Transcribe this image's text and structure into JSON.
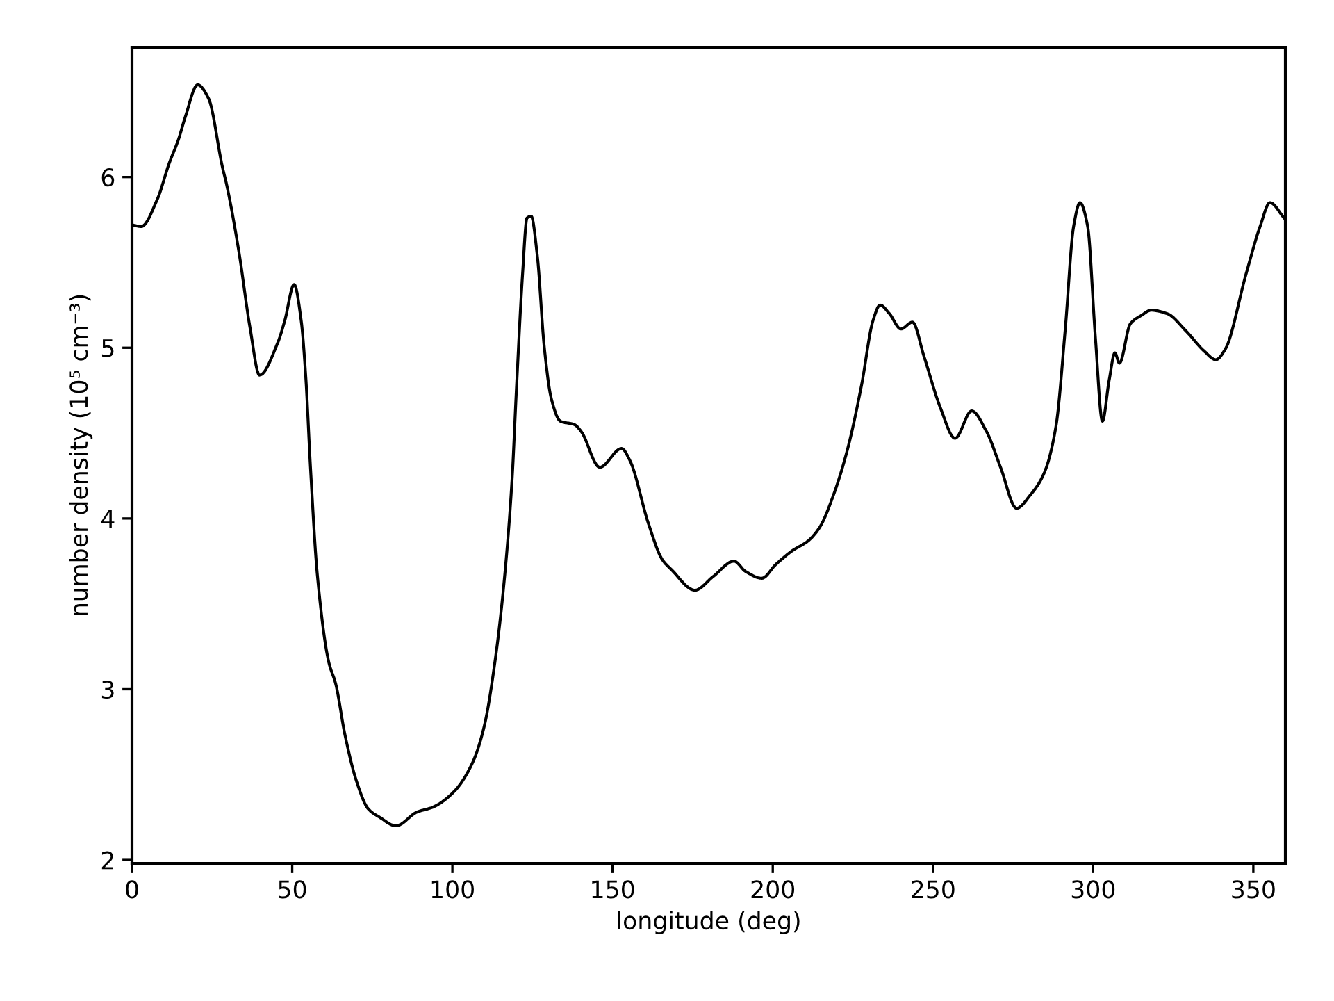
{
  "chart_data": {
    "type": "line",
    "xlabel": "longitude (deg)",
    "ylabel": "number density (10⁵ cm⁻³)",
    "xlim": [
      0,
      360
    ],
    "xticks": [
      0,
      50,
      100,
      150,
      200,
      250,
      300,
      350
    ],
    "ylim": [
      1.98,
      6.76
    ],
    "yticks": [
      2,
      3,
      4,
      5,
      6
    ],
    "grid": false,
    "legend": false,
    "marker": "none",
    "line_style": "solid",
    "series": [
      {
        "color": "#000000",
        "x": [
          0,
          2.9,
          7.9,
          11.6,
          14.5,
          16.6,
          20.5,
          23.9,
          28.2,
          29.6,
          33.3,
          36.9,
          39.8,
          45.5,
          47.7,
          50.6,
          52.8,
          54.2,
          55.7,
          57.8,
          61.4,
          63.6,
          66.5,
          70.1,
          73.7,
          77.3,
          82.4,
          88.9,
          94.0,
          100.5,
          106.3,
          109.9,
          113.5,
          116.4,
          118.6,
          120.0,
          121.9,
          123.3,
          124.6,
          126.5,
          128.7,
          130.9,
          133.7,
          138.1,
          140.2,
          146.0,
          152.8,
          155.4,
          161.2,
          165.5,
          168.4,
          175.7,
          181.4,
          187.9,
          191.5,
          196.6,
          200.9,
          206.0,
          211.1,
          214.7,
          219.0,
          223.4,
          227.7,
          231.3,
          233.5,
          236.4,
          240.0,
          243.6,
          247.2,
          252.3,
          256.9,
          262.1,
          266.7,
          271.1,
          276.1,
          280.5,
          284.8,
          288.4,
          291.3,
          293.9,
          295.9,
          298.3,
          300.7,
          302.9,
          305.0,
          306.8,
          308.2,
          311.6,
          315.1,
          318.1,
          323.1,
          328.9,
          334.7,
          338.3,
          341.2,
          347.7,
          352.1,
          355.2,
          359.6
        ],
        "values": [
          5.72,
          5.71,
          5.87,
          6.08,
          6.22,
          6.35,
          6.54,
          6.46,
          6.06,
          5.95,
          5.57,
          5.11,
          4.84,
          5.03,
          5.16,
          5.37,
          5.16,
          4.84,
          4.3,
          3.68,
          3.16,
          3.03,
          2.73,
          2.46,
          2.3,
          2.25,
          2.2,
          2.28,
          2.31,
          2.4,
          2.57,
          2.78,
          3.19,
          3.68,
          4.22,
          4.76,
          5.43,
          5.76,
          5.77,
          5.54,
          5.0,
          4.7,
          4.57,
          4.55,
          4.51,
          4.3,
          4.41,
          4.34,
          3.97,
          3.76,
          3.7,
          3.58,
          3.66,
          3.75,
          3.69,
          3.65,
          3.73,
          3.81,
          3.87,
          3.95,
          4.14,
          4.41,
          4.78,
          5.16,
          5.25,
          5.2,
          5.11,
          5.15,
          4.95,
          4.65,
          4.47,
          4.63,
          4.51,
          4.3,
          4.06,
          4.14,
          4.27,
          4.54,
          5.11,
          5.71,
          5.85,
          5.71,
          5.06,
          4.57,
          4.81,
          4.97,
          4.91,
          5.14,
          5.19,
          5.22,
          5.2,
          5.1,
          4.98,
          4.93,
          4.99,
          5.43,
          5.71,
          5.85,
          5.76
        ]
      }
    ]
  }
}
